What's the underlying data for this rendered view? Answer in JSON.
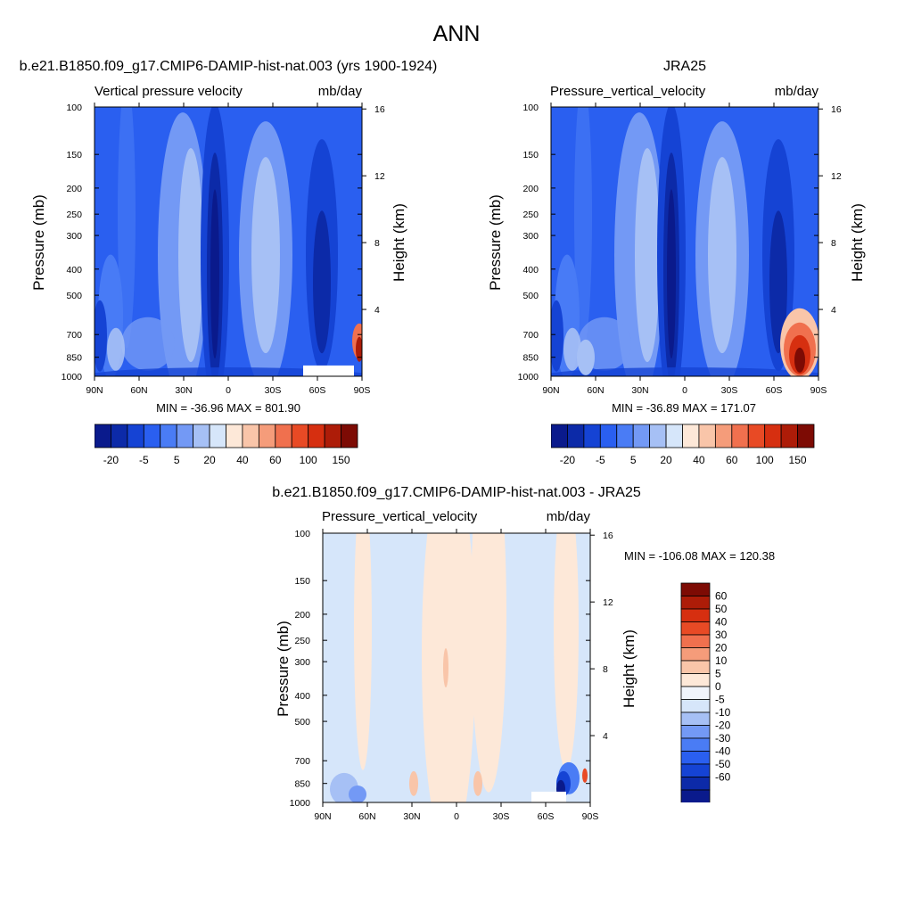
{
  "figure_title": "ANN",
  "colors": {
    "abs_scale": [
      "#0a1a8c",
      "#0c2aa8",
      "#1543d4",
      "#2a5ff0",
      "#4a7cf5",
      "#7399f5",
      "#a6c0f5",
      "#d6e6fa",
      "#fde8d8",
      "#f9c5a9",
      "#f59c7a",
      "#f0704e",
      "#e84a25",
      "#d62f10",
      "#ad1c08",
      "#7d0b04"
    ],
    "abs_labels": [
      "-20",
      "-5",
      "5",
      "20",
      "40",
      "60",
      "100",
      "150"
    ],
    "diff_scale": [
      "#7d0b04",
      "#ad1c08",
      "#d62f10",
      "#e84a25",
      "#f0704e",
      "#f59c7a",
      "#f9c5a9",
      "#fde8d8",
      "#f0f4fb",
      "#d6e6fa",
      "#a6c0f5",
      "#7399f5",
      "#4a7cf5",
      "#2a5ff0",
      "#1543d4",
      "#0c2aa8",
      "#0a1a8c"
    ],
    "diff_labels": [
      "60",
      "50",
      "40",
      "30",
      "20",
      "10",
      "5",
      "0",
      "-5",
      "-10",
      "-20",
      "-30",
      "-40",
      "-50",
      "-60"
    ]
  },
  "chart_data": [
    {
      "type": "heatmap",
      "title": "b.e21.B1850.f09_g17.CMIP6-DAMIP-hist-nat.003 (yrs 1900-1924)",
      "field": "Vertical pressure velocity",
      "units": "mb/day",
      "ylabel": "Pressure (mb)",
      "ylabel_right": "Height (km)",
      "x_ticks": [
        "90N",
        "60N",
        "30N",
        "0",
        "30S",
        "60S",
        "90S"
      ],
      "y_ticks": [
        100,
        150,
        200,
        250,
        300,
        400,
        500,
        700,
        850,
        1000
      ],
      "y2_ticks": [
        4,
        8,
        12,
        16
      ],
      "xlim": [
        90,
        -90
      ],
      "ylim": [
        1000,
        100
      ],
      "min_max": "MIN = -36.96  MAX = 801.90",
      "min": -36.96,
      "max": 801.9
    },
    {
      "type": "heatmap",
      "title": "JRA25",
      "field": "Pressure_vertical_velocity",
      "units": "mb/day",
      "ylabel": "Pressure (mb)",
      "ylabel_right": "Height (km)",
      "x_ticks": [
        "90N",
        "60N",
        "30N",
        "0",
        "30S",
        "60S",
        "90S"
      ],
      "y_ticks": [
        100,
        150,
        200,
        250,
        300,
        400,
        500,
        700,
        850,
        1000
      ],
      "y2_ticks": [
        4,
        8,
        12,
        16
      ],
      "xlim": [
        90,
        -90
      ],
      "ylim": [
        1000,
        100
      ],
      "min_max": "MIN = -36.89  MAX = 171.07",
      "min": -36.89,
      "max": 171.07
    },
    {
      "type": "heatmap",
      "title": "b.e21.B1850.f09_g17.CMIP6-DAMIP-hist-nat.003 - JRA25",
      "field": "Pressure_vertical_velocity",
      "units": "mb/day",
      "ylabel": "Pressure (mb)",
      "ylabel_right": "Height (km)",
      "x_ticks": [
        "90N",
        "60N",
        "30N",
        "0",
        "30S",
        "60S",
        "90S"
      ],
      "y_ticks": [
        100,
        150,
        200,
        250,
        300,
        400,
        500,
        700,
        850,
        1000
      ],
      "y2_ticks": [
        4,
        8,
        12,
        16
      ],
      "xlim": [
        90,
        -90
      ],
      "ylim": [
        1000,
        100
      ],
      "min_max": "MIN = -106.08  MAX = 120.38",
      "min": -106.08,
      "max": 120.38
    }
  ]
}
